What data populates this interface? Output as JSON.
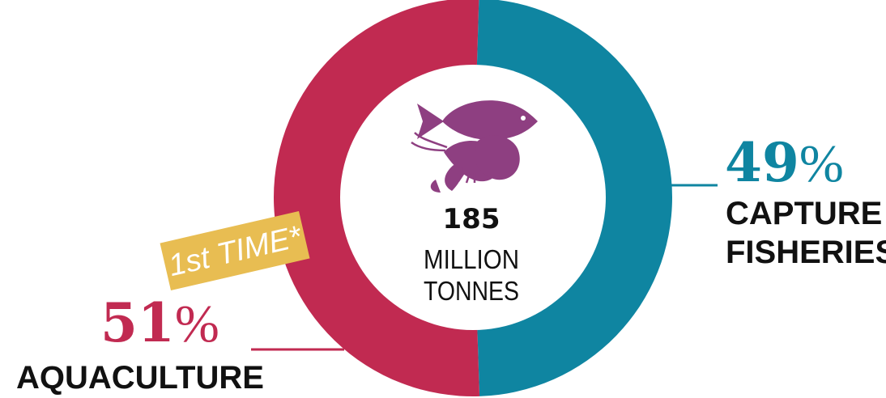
{
  "chart_data": {
    "type": "pie",
    "center": {
      "value": "185",
      "unit_line1": "MILLION",
      "unit_line2": "TONNES",
      "icon": "fish-and-shrimp-icon"
    },
    "slices": [
      {
        "label": "CAPTURE FISHERIES",
        "label_line1": "CAPTURE",
        "label_line2": "FISHERIES",
        "value": 49,
        "value_label": "49",
        "color": "#0f85a1"
      },
      {
        "label": "AQUACULTURE",
        "label_line1": "AQUACULTURE",
        "label_line2": "",
        "value": 51,
        "value_label": "51",
        "color": "#c12a51"
      }
    ],
    "percent_sign": "%",
    "badge": {
      "text": "1st TIME*",
      "color": "#e8bd52"
    }
  },
  "colors": {
    "capture": "#0f85a1",
    "aquaculture": "#c12a51",
    "icon": "#8e3f81",
    "badge": "#e8bd52"
  }
}
